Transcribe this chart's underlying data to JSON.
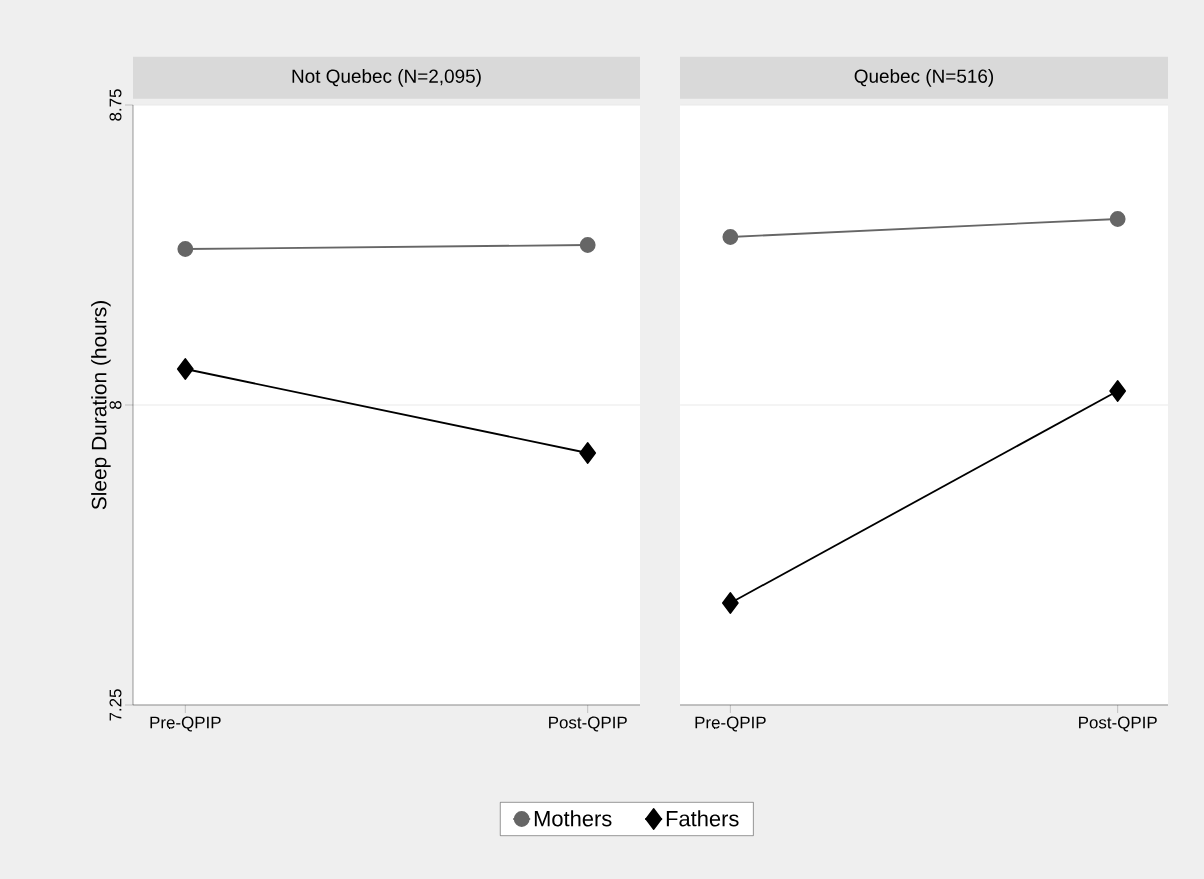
{
  "chart_data": [
    {
      "type": "line",
      "title": "Not Quebec (N=2,095)",
      "ylabel": "Sleep Duration (hours)",
      "categories": [
        "Pre-QPIP",
        "Post-QPIP"
      ],
      "series": [
        {
          "name": "Mothers",
          "color": "#666666",
          "marker": "circle",
          "values": [
            8.39,
            8.4
          ]
        },
        {
          "name": "Fathers",
          "color": "#000000",
          "marker": "diamond",
          "values": [
            8.09,
            7.88
          ]
        }
      ],
      "ylim": [
        7.25,
        8.75
      ],
      "yticks": [
        7.25,
        8,
        8.75
      ],
      "grid": "y",
      "legend": "bottom"
    },
    {
      "type": "line",
      "title": "Quebec (N=516)",
      "categories": [
        "Pre-QPIP",
        "Post-QPIP"
      ],
      "series": [
        {
          "color": "#666666",
          "marker": "circle",
          "values": [
            8.42,
            8.465
          ]
        },
        {
          "color": "#000000",
          "marker": "diamond",
          "values": [
            7.505,
            8.035
          ]
        }
      ],
      "ylim": [
        7.25,
        8.75
      ],
      "yticks": [
        7.25,
        8,
        8.75
      ],
      "grid": "y",
      "tick_labels": "x"
    }
  ]
}
